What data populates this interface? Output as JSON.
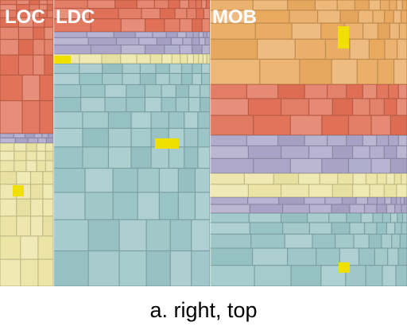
{
  "caption": "a. right, top",
  "regions": {
    "loc": {
      "label": "LOC"
    },
    "ldc": {
      "label": "LDC"
    },
    "mob": {
      "label": "MOB"
    }
  },
  "colors": {
    "orange": "#e9a95f",
    "red": "#e06f55",
    "lavender": "#a8a3c6",
    "cream": "#ece4a4",
    "teal": "#98c3c5",
    "highlight": "#f0e000",
    "label": "#ffffff"
  }
}
